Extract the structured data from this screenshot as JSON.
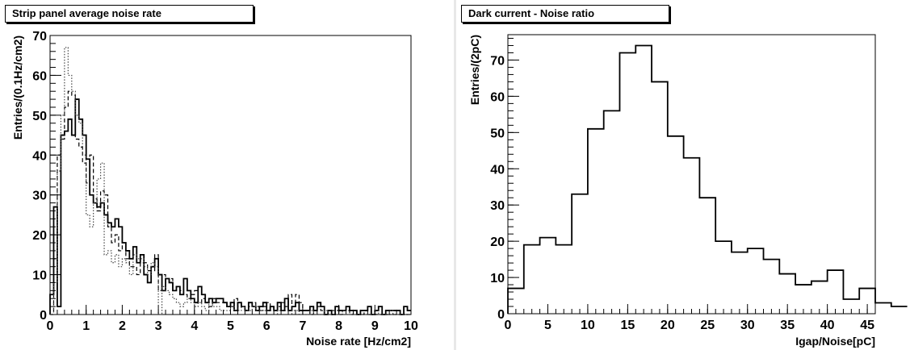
{
  "chart_data": [
    {
      "type": "histogram",
      "title": "Strip panel average noise rate",
      "xlabel": "Noise rate [Hz/cm2]",
      "ylabel": "Entries/(0.1Hz/cm2)",
      "xlim": [
        0,
        10
      ],
      "ylim": [
        0,
        70
      ],
      "x_ticks": [
        0,
        1,
        2,
        3,
        4,
        5,
        6,
        7,
        8,
        9,
        10
      ],
      "y_ticks": [
        0,
        10,
        20,
        30,
        40,
        50,
        60,
        70
      ],
      "bin_width": 0.1,
      "grid": false,
      "series": [
        {
          "style": "solid",
          "values": [
            5,
            27,
            2,
            45,
            46,
            49,
            45,
            54,
            49,
            45,
            39,
            30,
            28,
            27,
            28,
            25,
            23,
            22,
            24,
            22,
            18,
            16,
            14,
            17,
            13,
            15,
            10,
            8,
            12,
            14,
            10,
            6,
            9,
            8,
            6,
            7,
            5,
            9,
            6,
            4,
            3,
            7,
            5,
            3,
            4,
            3,
            4,
            4,
            3,
            2,
            3,
            1,
            3,
            2,
            1,
            3,
            2,
            1,
            2,
            3,
            1,
            2,
            1,
            3,
            1,
            4,
            1,
            2,
            3,
            1,
            1,
            1,
            2,
            1,
            3,
            2,
            0,
            1,
            0,
            2,
            1,
            1,
            2,
            1,
            1,
            0,
            1,
            1,
            2,
            0,
            1,
            2,
            0,
            1,
            1,
            1,
            1,
            0,
            2,
            1
          ]
        },
        {
          "style": "dashed",
          "values": [
            0,
            14,
            40,
            44,
            52,
            56,
            55,
            44,
            42,
            38,
            33,
            40,
            29,
            26,
            31,
            30,
            22,
            18,
            20,
            16,
            18,
            14,
            12,
            12,
            10,
            13,
            13,
            11,
            11,
            15,
            6,
            10,
            8,
            9,
            6,
            7,
            6,
            5,
            4,
            5,
            6,
            3,
            4,
            3,
            2,
            4,
            3,
            3,
            3,
            2,
            2,
            4,
            2,
            2,
            1,
            2,
            3,
            2,
            1,
            2,
            3,
            2,
            1,
            2,
            3,
            2,
            5,
            2,
            5,
            3,
            1,
            1,
            0,
            2,
            2,
            1,
            0,
            1,
            1,
            1,
            0,
            1,
            1,
            0,
            1,
            0,
            0,
            1,
            0,
            0,
            0,
            0,
            0,
            0,
            0,
            0,
            0,
            0,
            0,
            0
          ]
        },
        {
          "style": "dotted",
          "values": [
            0,
            8,
            36,
            50,
            67,
            60,
            56,
            50,
            48,
            40,
            25,
            22,
            28,
            34,
            38,
            15,
            16,
            13,
            15,
            12,
            14,
            13,
            10,
            15,
            14,
            14,
            12,
            10,
            13,
            12,
            0,
            7,
            6,
            5,
            4,
            3,
            2,
            3,
            4,
            3,
            2,
            3,
            2,
            1,
            3,
            2,
            2,
            1,
            1,
            1,
            2,
            1,
            1,
            2,
            1,
            1,
            2,
            1,
            1,
            1,
            1,
            1,
            0,
            1,
            1,
            1,
            0,
            1,
            1,
            0,
            0,
            0,
            1,
            0,
            0,
            0,
            1,
            0,
            0,
            0,
            0,
            1,
            0,
            0,
            0,
            0,
            0,
            0,
            0,
            0,
            1,
            0,
            0,
            0,
            1,
            0,
            0,
            0,
            0,
            0
          ]
        }
      ]
    },
    {
      "type": "histogram",
      "title": "Dark current - Noise ratio",
      "xlabel": "Igap/Noise[pC]",
      "ylabel": "Entries/(2pC)",
      "xlim": [
        0,
        46
      ],
      "ylim": [
        0,
        77
      ],
      "x_ticks": [
        0,
        5,
        10,
        15,
        20,
        25,
        30,
        35,
        40,
        45
      ],
      "y_ticks": [
        0,
        10,
        20,
        30,
        40,
        50,
        60,
        70
      ],
      "bin_width": 2,
      "grid": false,
      "series": [
        {
          "style": "solid",
          "values": [
            7,
            19,
            21,
            19,
            33,
            51,
            56,
            72,
            74,
            64,
            49,
            43,
            32,
            20,
            17,
            18,
            15,
            11,
            8,
            9,
            12,
            4,
            7,
            3,
            2
          ]
        }
      ]
    }
  ]
}
